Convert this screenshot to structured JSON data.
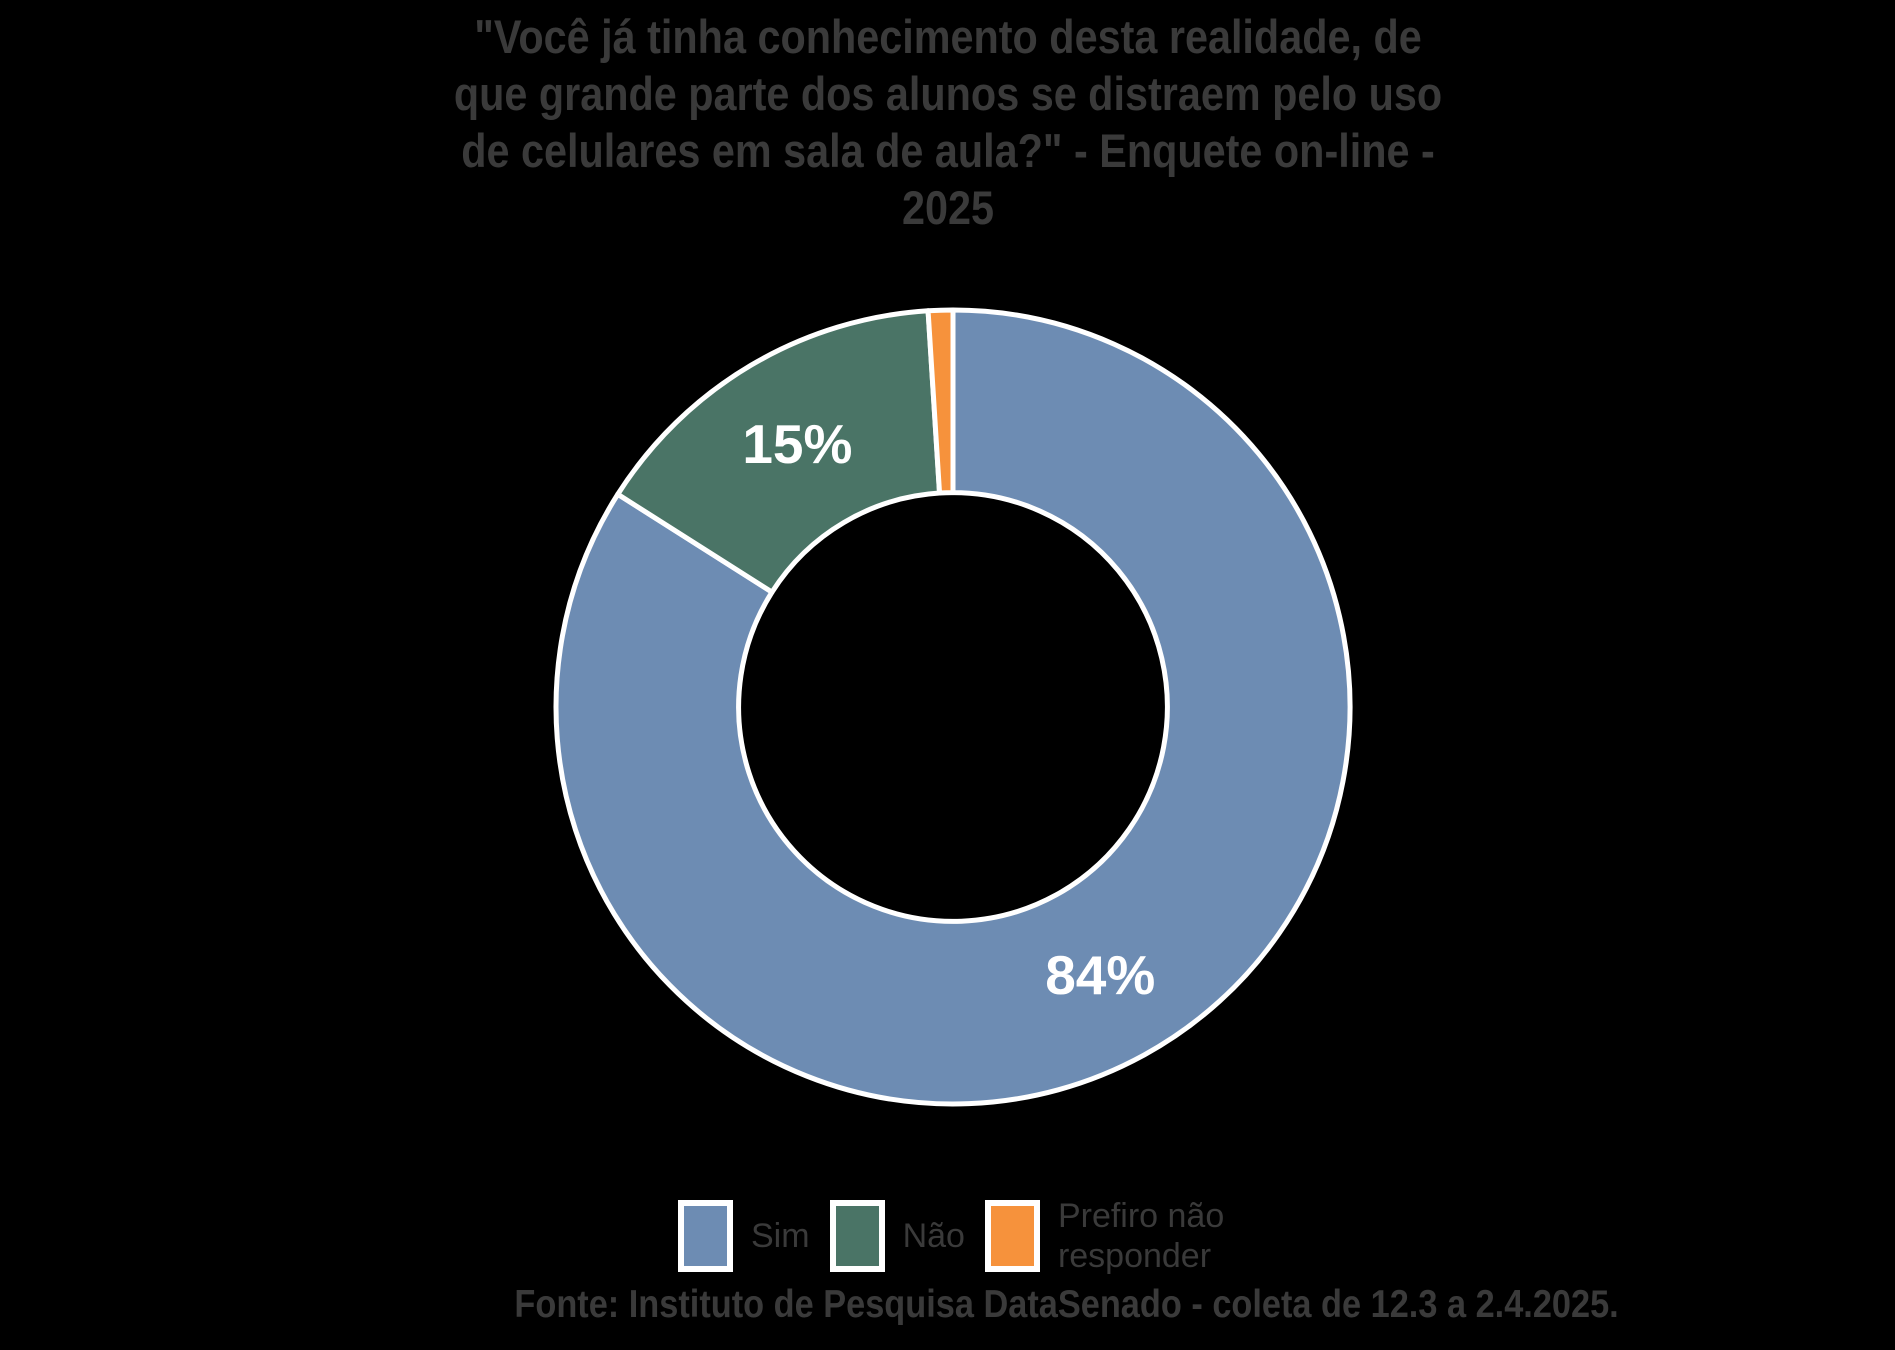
{
  "title": {
    "lines": [
      "\"Você já tinha conhecimento desta realidade, de",
      "que grande parte dos alunos se distraem pelo uso",
      "de celulares em sala de aula?\" - Enquete on-line -",
      "2025"
    ],
    "full_text": "\"Você já tinha conhecimento desta realidade, de que grande parte dos alunos se distraem pelo uso de celulares em sala de aula?\" - Enquete on-line - 2025"
  },
  "chart_data": {
    "type": "pie",
    "subtype": "donut",
    "title": "\"Você já tinha conhecimento desta realidade, de que grande parte dos alunos se distraem pelo uso de celulares em sala de aula?\" - Enquete on-line - 2025",
    "categories": [
      "Sim",
      "Não",
      "Prefiro não responder"
    ],
    "values": [
      84,
      15,
      1
    ],
    "unit": "%",
    "slices": [
      {
        "label": "Sim",
        "value": 84,
        "pct_label": "84%",
        "color": "#6D8CB3"
      },
      {
        "label": "Não",
        "value": 15,
        "pct_label": "15%",
        "color": "#4A7466"
      },
      {
        "label": "Prefiro não responder",
        "value": 1,
        "pct_label": "",
        "color": "#F6923C"
      }
    ],
    "start_angle_deg": 0,
    "direction": "clockwise",
    "inner_radius_ratio": 0.54,
    "slice_border_color": "#FFFFFF",
    "label_color": "#FFFFFF",
    "legend_position": "bottom"
  },
  "legend": {
    "items": [
      {
        "label": "Sim",
        "color": "#6D8CB3"
      },
      {
        "label": "Não",
        "color": "#4A7466"
      },
      {
        "label": "Prefiro não responder",
        "color": "#F6923C"
      }
    ]
  },
  "footer": {
    "source_text": "Fonte: Instituto de Pesquisa DataSenado - coleta de 12.3 a 2.4.2025."
  },
  "colors": {
    "background": "#000000",
    "text": "#3A3A3A",
    "slice_label": "#FFFFFF",
    "slice_border": "#FFFFFF"
  }
}
